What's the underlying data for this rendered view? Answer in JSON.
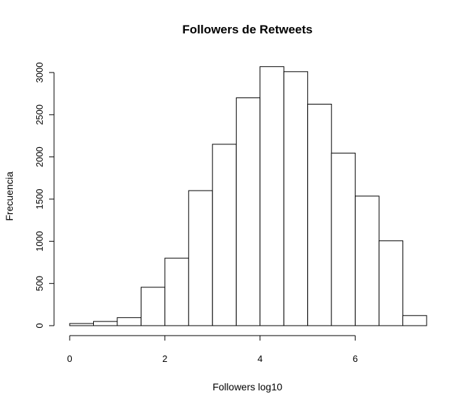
{
  "chart_data": {
    "type": "bar",
    "title": "Followers de Retweets",
    "xlabel": "Followers log10",
    "ylabel": "Frecuencia",
    "bins": [
      [
        0,
        0.5
      ],
      [
        0.5,
        1
      ],
      [
        1,
        1.5
      ],
      [
        1.5,
        2
      ],
      [
        2,
        2.5
      ],
      [
        2.5,
        3
      ],
      [
        3,
        3.5
      ],
      [
        3.5,
        4
      ],
      [
        4,
        4.5
      ],
      [
        4.5,
        5
      ],
      [
        5,
        5.5
      ],
      [
        5.5,
        6
      ],
      [
        6,
        6.5
      ],
      [
        6.5,
        7
      ],
      [
        7,
        7.5
      ]
    ],
    "values": [
      25,
      50,
      95,
      455,
      800,
      1600,
      2150,
      2700,
      3070,
      3010,
      2625,
      2045,
      1535,
      1005,
      120
    ],
    "xlim": [
      0,
      7.5
    ],
    "ylim": [
      0,
      3000
    ],
    "x_ticks": [
      0,
      2,
      4,
      6
    ],
    "x_tick_labels": [
      "0",
      "2",
      "4",
      "6"
    ],
    "y_ticks": [
      0,
      500,
      1000,
      1500,
      2000,
      2500,
      3000
    ],
    "y_tick_labels": [
      "0",
      "500",
      "1000",
      "1500",
      "2000",
      "2500",
      "3000"
    ],
    "grid": false,
    "legend": "none"
  }
}
